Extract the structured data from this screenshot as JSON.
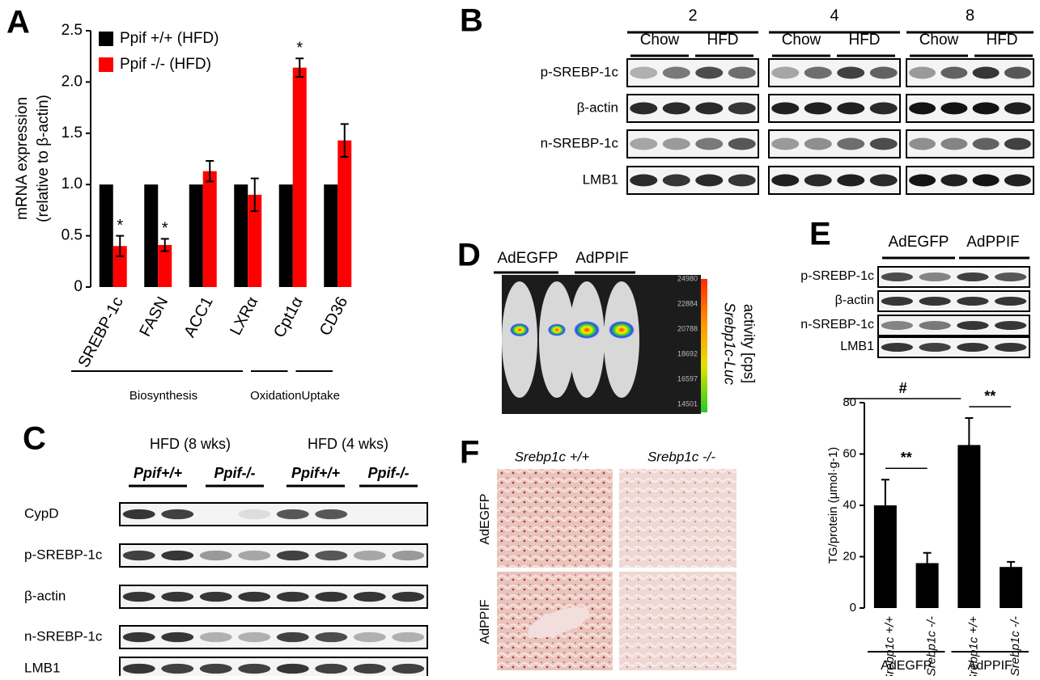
{
  "panel_letters": [
    "A",
    "B",
    "C",
    "D",
    "E",
    "F"
  ],
  "chart_data": [
    {
      "type": "bar",
      "y_label": [
        "mRNA expression",
        "(relative to β-actin)"
      ],
      "categories": [
        "SREBP-1c",
        "FASN",
        "ACC1",
        "LXRα",
        "Cpt1α",
        "CD36"
      ],
      "category_groups": [
        "Biosynthesis",
        "Biosynthesis",
        "Biosynthesis",
        "Biosynthesis",
        "Oxidation",
        "Uptake"
      ],
      "series": [
        {
          "name": "Ppif +/+ (HFD)",
          "color": "#000000",
          "values": [
            1,
            1,
            1,
            1,
            1,
            1
          ]
        },
        {
          "name": "Ppif -/- (HFD)",
          "color": "#ff0000",
          "values": [
            0.4,
            0.41,
            1.13,
            0.9,
            2.14,
            1.43
          ],
          "errors": [
            0.1,
            0.06,
            0.1,
            0.16,
            0.09,
            0.16
          ],
          "significance": [
            "*",
            "*",
            null,
            null,
            "*",
            null
          ]
        }
      ],
      "ylim": [
        0,
        2.5
      ],
      "yticks": [
        0,
        0.5,
        {
          "value": 1,
          "label": "1.0"
        },
        1.5,
        {
          "value": 2,
          "label": "2.0"
        },
        2.5
      ]
    },
    {
      "type": "bar",
      "y_label": "TG/protein (μmol·g-1)",
      "categories": [
        "Srebp1c +/+",
        "Srebp1c -/-",
        "Srebp1c +/+",
        "Srebp1c -/-"
      ],
      "category_groups": [
        "AdEGFP",
        "AdEGFP",
        "AdPPIF",
        "AdPPIF"
      ],
      "values": [
        40,
        17.5,
        63.5,
        16
      ],
      "errors": [
        10,
        4,
        10.5,
        2
      ],
      "color": "#000000",
      "comparisons": [
        {
          "label": "**",
          "between": [
            0,
            1
          ]
        },
        {
          "label": "#",
          "between": [
            0,
            2
          ]
        },
        {
          "label": "**",
          "between": [
            2,
            3
          ]
        }
      ],
      "ylim": [
        0,
        80
      ],
      "yticks": [
        0,
        20,
        40,
        60,
        80
      ]
    }
  ],
  "blot_B": {
    "time_headers": [
      "2",
      "4",
      "8"
    ],
    "conditions": [
      "Chow",
      "HFD"
    ],
    "rows": [
      "p-SREBP-1c",
      "β-actin",
      "n-SREBP-1c",
      "LMB1"
    ]
  },
  "blot_C": {
    "groups": [
      "HFD (8 wks)",
      "HFD (4 wks)"
    ],
    "genotypes": [
      "Ppif+/+",
      "Ppif-/-"
    ],
    "rows": [
      "CypD",
      "p-SREBP-1c",
      "β-actin",
      "n-SREBP-1c",
      "LMB1"
    ]
  },
  "imaging_D": {
    "groups": [
      "AdEGFP",
      "AdPPIF"
    ],
    "colorbar_ticks": [
      24980,
      22884,
      20788,
      18692,
      16597,
      14501
    ],
    "colorbar_label": [
      "Srebp1c-Luc",
      "activity [cps]"
    ]
  },
  "blot_E": {
    "groups": [
      "AdEGFP",
      "AdPPIF"
    ],
    "rows": [
      "p-SREBP-1c",
      "β-actin",
      "n-SREBP-1c",
      "LMB1"
    ]
  },
  "histology_F": {
    "columns": [
      "Srebp1c +/+",
      "Srebp1c -/-"
    ],
    "rows": [
      "AdEGFP",
      "AdPPIF"
    ]
  }
}
